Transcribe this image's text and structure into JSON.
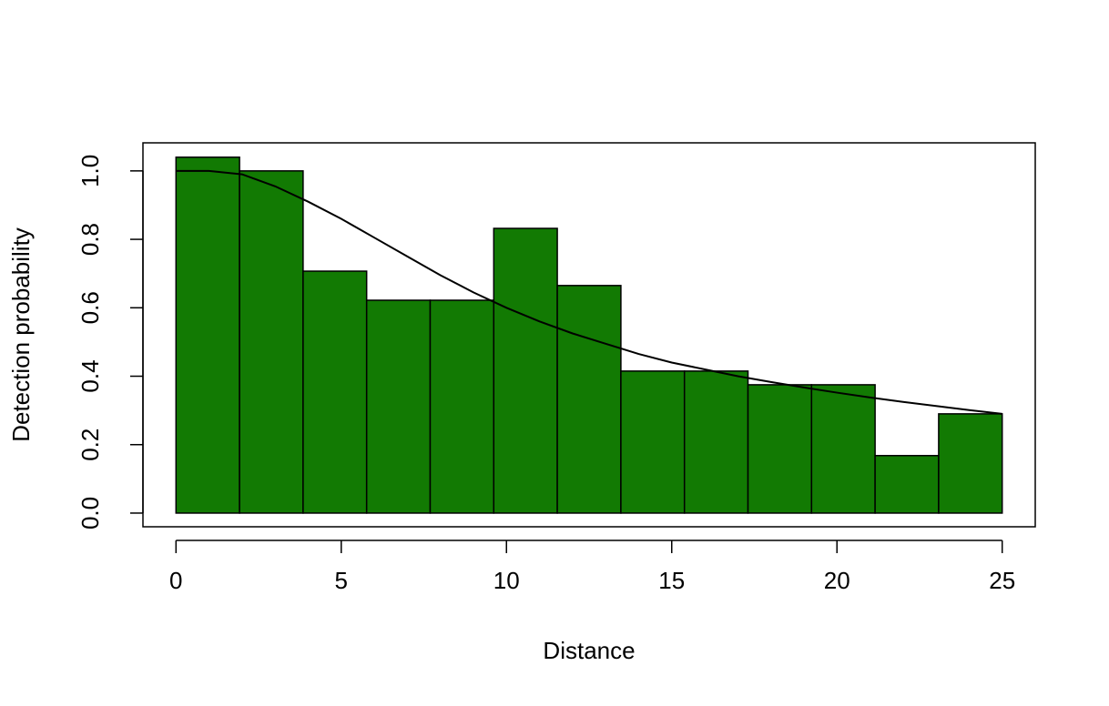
{
  "chart_data": {
    "type": "histogram",
    "xlabel": "Distance",
    "ylabel": "Detection probability",
    "bins": [
      0,
      1.923,
      3.846,
      5.769,
      7.692,
      9.615,
      11.538,
      13.462,
      15.385,
      17.308,
      19.231,
      21.154,
      23.077,
      25
    ],
    "counts": [
      1.04,
      1.0,
      0.707,
      0.622,
      0.622,
      0.832,
      0.665,
      0.415,
      0.415,
      0.375,
      0.375,
      0.168,
      0.29
    ],
    "color": "#127a03",
    "curve": {
      "color": "#000000",
      "x": [
        0,
        1,
        2,
        3,
        4,
        5,
        6,
        7,
        8,
        9,
        10,
        11,
        12,
        13,
        14,
        15,
        16,
        17,
        18,
        19,
        20,
        21,
        22,
        23,
        24,
        25
      ],
      "values": [
        1.0,
        1.0,
        0.99,
        0.955,
        0.91,
        0.86,
        0.805,
        0.75,
        0.695,
        0.645,
        0.6,
        0.56,
        0.525,
        0.495,
        0.465,
        0.44,
        0.42,
        0.4,
        0.383,
        0.367,
        0.352,
        0.338,
        0.325,
        0.313,
        0.301,
        0.29
      ]
    },
    "xlim": [
      -1,
      26
    ],
    "ylim": [
      -0.04,
      1.082
    ],
    "xticks": [
      0,
      5,
      10,
      15,
      20,
      25
    ],
    "yticks": [
      {
        "value": 0,
        "label": "0.0"
      },
      0.2,
      0.4,
      0.6,
      0.8,
      {
        "value": 1,
        "label": "1.0"
      }
    ]
  }
}
